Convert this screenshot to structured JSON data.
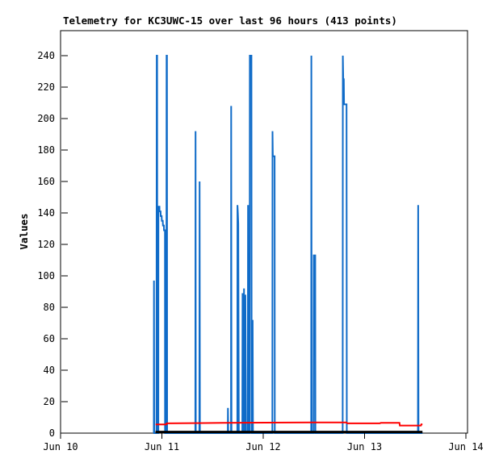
{
  "page": {
    "background_color": "#ffffff"
  },
  "chart_data": {
    "type": "line",
    "title": "Telemetry for KC3UWC-15 over last 96 hours (413 points)",
    "xlabel": "",
    "ylabel": "Values",
    "points_note": "413 points",
    "station": "KC3UWC-15",
    "timespan_hours": 96,
    "grid": false,
    "legend": "none",
    "x_unit": "days since Jun 10",
    "xlim_days": [
      0,
      4
    ],
    "ylim": [
      0,
      256
    ],
    "x_ticks": [
      {
        "day": 0,
        "label": "Jun 10"
      },
      {
        "day": 1,
        "label": "Jun 11"
      },
      {
        "day": 2,
        "label": "Jun 12"
      },
      {
        "day": 3,
        "label": "Jun 13"
      },
      {
        "day": 4,
        "label": "Jun 14"
      }
    ],
    "y_ticks": [
      0,
      20,
      40,
      60,
      80,
      100,
      120,
      140,
      160,
      180,
      200,
      220,
      240
    ],
    "colors": {
      "blue_series": "#0f6bc8",
      "red_series": "#ff0000",
      "black_series": "#000000",
      "border": "#000000",
      "title_text": "#000000"
    },
    "series": [
      {
        "name": "telemetry-values-blue",
        "color": "#0f6bc8",
        "stroke_width": 2,
        "points": [
          [
            0.92,
            0
          ],
          [
            0.922,
            97
          ],
          [
            0.924,
            0
          ],
          [
            0.947,
            0
          ],
          [
            0.949,
            240
          ],
          [
            0.953,
            240
          ],
          [
            0.955,
            0
          ],
          [
            0.965,
            0
          ],
          [
            0.966,
            144
          ],
          [
            0.976,
            144
          ],
          [
            0.977,
            141
          ],
          [
            0.987,
            141
          ],
          [
            0.988,
            138
          ],
          [
            0.998,
            138
          ],
          [
            0.999,
            135
          ],
          [
            1.009,
            135
          ],
          [
            1.01,
            132
          ],
          [
            1.02,
            132
          ],
          [
            1.021,
            129
          ],
          [
            1.03,
            129
          ],
          [
            1.031,
            0
          ],
          [
            1.044,
            0
          ],
          [
            1.046,
            240
          ],
          [
            1.05,
            240
          ],
          [
            1.052,
            0
          ],
          [
            1.33,
            0
          ],
          [
            1.332,
            192
          ],
          [
            1.335,
            0
          ],
          [
            1.37,
            0
          ],
          [
            1.372,
            160
          ],
          [
            1.375,
            0
          ],
          [
            1.65,
            0
          ],
          [
            1.652,
            16
          ],
          [
            1.655,
            0
          ],
          [
            1.682,
            0
          ],
          [
            1.684,
            208
          ],
          [
            1.687,
            0
          ],
          [
            1.744,
            0
          ],
          [
            1.746,
            145
          ],
          [
            1.75,
            140
          ],
          [
            1.754,
            133
          ],
          [
            1.757,
            57
          ],
          [
            1.759,
            0
          ],
          [
            1.794,
            0
          ],
          [
            1.796,
            89
          ],
          [
            1.8,
            28
          ],
          [
            1.802,
            0
          ],
          [
            1.808,
            0
          ],
          [
            1.81,
            92
          ],
          [
            1.814,
            10
          ],
          [
            1.816,
            0
          ],
          [
            1.822,
            0
          ],
          [
            1.824,
            88
          ],
          [
            1.828,
            35
          ],
          [
            1.83,
            0
          ],
          [
            1.848,
            0
          ],
          [
            1.85,
            145
          ],
          [
            1.853,
            0
          ],
          [
            1.866,
            0
          ],
          [
            1.868,
            240
          ],
          [
            1.884,
            240
          ],
          [
            1.886,
            0
          ],
          [
            1.894,
            0
          ],
          [
            1.896,
            72
          ],
          [
            1.899,
            0
          ],
          [
            2.09,
            0
          ],
          [
            2.092,
            192
          ],
          [
            2.095,
            176
          ],
          [
            2.112,
            176
          ],
          [
            2.114,
            0
          ],
          [
            2.473,
            0
          ],
          [
            2.475,
            240
          ],
          [
            2.478,
            0
          ],
          [
            2.497,
            0
          ],
          [
            2.499,
            113
          ],
          [
            2.513,
            113
          ],
          [
            2.515,
            0
          ],
          [
            2.784,
            0
          ],
          [
            2.786,
            240
          ],
          [
            2.79,
            225
          ],
          [
            2.795,
            225
          ],
          [
            2.798,
            209
          ],
          [
            2.822,
            209
          ],
          [
            2.825,
            0
          ],
          [
            3.527,
            0
          ],
          [
            3.529,
            145
          ],
          [
            3.532,
            0
          ],
          [
            3.571,
            0
          ]
        ]
      },
      {
        "name": "telemetry-values-red",
        "color": "#ff0000",
        "stroke_width": 2,
        "points": [
          [
            0.938,
            5.5
          ],
          [
            1.045,
            5.5
          ],
          [
            1.047,
            6.2
          ],
          [
            1.6,
            6.5
          ],
          [
            2.6,
            6.8
          ],
          [
            2.82,
            6.8
          ],
          [
            2.83,
            6.2
          ],
          [
            3.15,
            6.2
          ],
          [
            3.16,
            6.5
          ],
          [
            3.344,
            6.5
          ],
          [
            3.348,
            4.8
          ],
          [
            3.556,
            4.8
          ],
          [
            3.56,
            5.6
          ],
          [
            3.571,
            5.6
          ]
        ]
      },
      {
        "name": "telemetry-values-black",
        "color": "#000000",
        "stroke_width": 3,
        "points": [
          [
            0.936,
            0.7
          ],
          [
            3.571,
            0.7
          ]
        ]
      }
    ]
  }
}
